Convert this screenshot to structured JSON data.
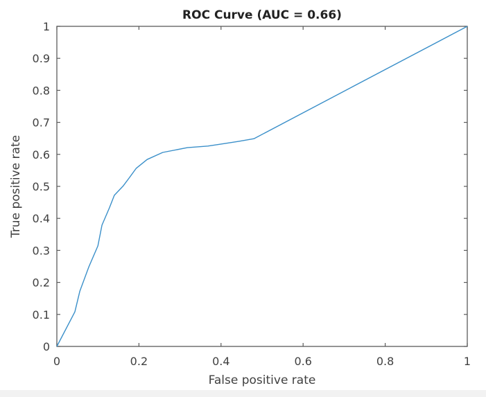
{
  "chart_data": {
    "type": "line",
    "title": "ROC Curve (AUC = 0.66)",
    "xlabel": "False positive rate",
    "ylabel": "True positive rate",
    "xlim": [
      0,
      1
    ],
    "ylim": [
      0,
      1
    ],
    "grid": false,
    "legend": null,
    "x_ticks": [
      0,
      0.2,
      0.4,
      0.6,
      0.8,
      1
    ],
    "x_tick_labels": [
      "0",
      "0.2",
      "0.4",
      "0.6",
      "0.8",
      "1"
    ],
    "y_ticks": [
      0,
      0.1,
      0.2,
      0.3,
      0.4,
      0.5,
      0.6,
      0.7,
      0.8,
      0.9,
      1
    ],
    "y_tick_labels": [
      "0",
      "0.1",
      "0.2",
      "0.3",
      "0.4",
      "0.5",
      "0.6",
      "0.7",
      "0.8",
      "0.9",
      "1"
    ],
    "series": [
      {
        "name": "ROC",
        "color": "#3a8fc9",
        "x": [
          0,
          0.044,
          0.056,
          0.078,
          0.1,
          0.11,
          0.128,
          0.14,
          0.162,
          0.176,
          0.193,
          0.22,
          0.258,
          0.318,
          0.368,
          0.41,
          0.444,
          0.48,
          1.0
        ],
        "y": [
          0,
          0.108,
          0.173,
          0.249,
          0.314,
          0.379,
          0.433,
          0.472,
          0.502,
          0.526,
          0.556,
          0.584,
          0.606,
          0.621,
          0.626,
          0.634,
          0.641,
          0.649,
          1.0
        ]
      }
    ],
    "auc": 0.66
  },
  "colors": {
    "axis": "#5a5a5a",
    "text": "#404040",
    "title": "#222222",
    "line": "#3a8fc9",
    "background": "#ffffff",
    "strip": "#f2f2f2"
  }
}
